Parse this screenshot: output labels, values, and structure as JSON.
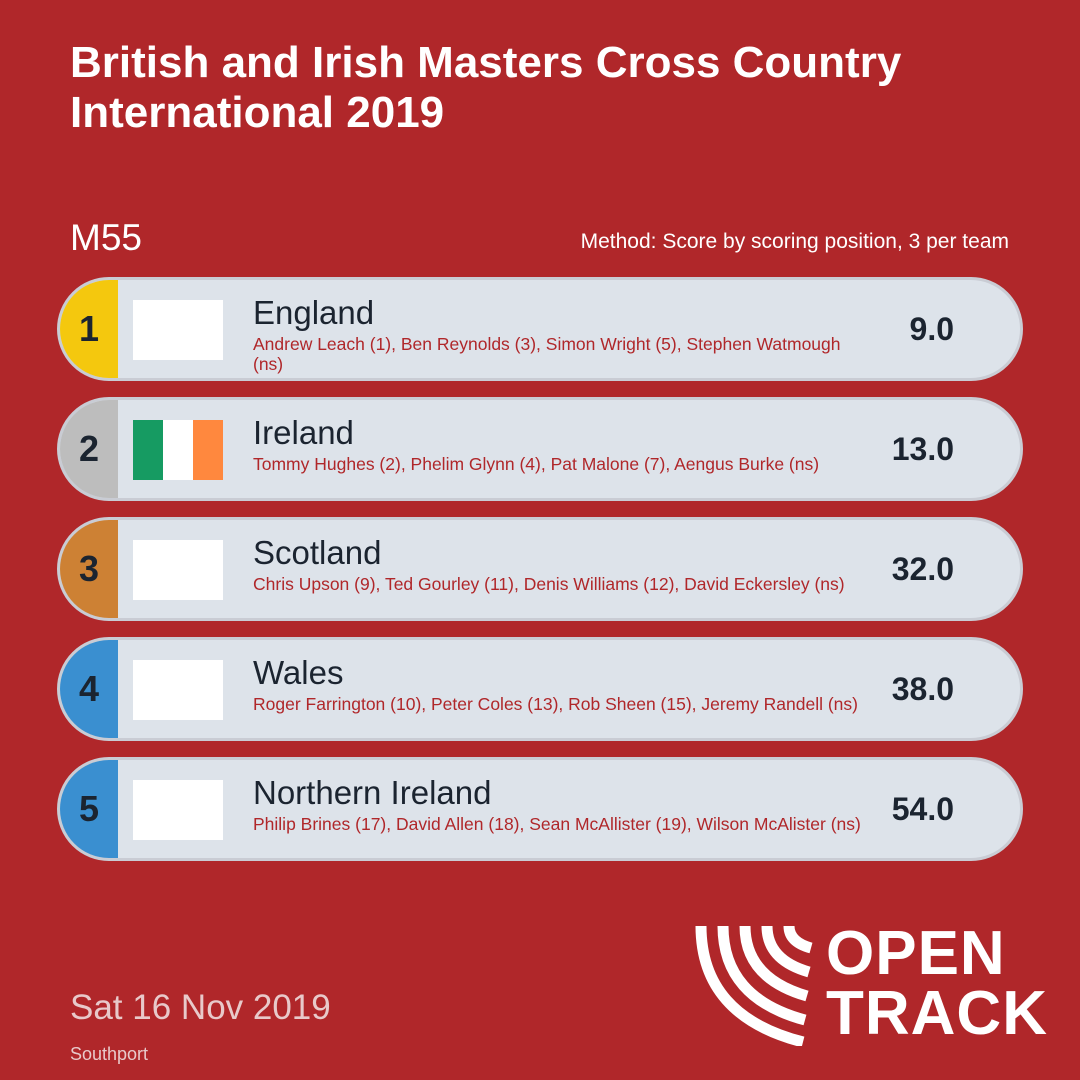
{
  "header": {
    "title": "British and Irish Masters Cross Country International 2019",
    "category": "M55",
    "method": "Method: Score by scoring position, 3 per team"
  },
  "results": [
    {
      "position": "1",
      "position_color": "#f4c80e",
      "flag": [
        "#ffffff"
      ],
      "team": "England",
      "athletes": "Andrew Leach (1), Ben Reynolds (3), Simon Wright (5), Stephen Watmough (ns)",
      "score": "9.0"
    },
    {
      "position": "2",
      "position_color": "#bdbdbd",
      "flag": [
        "#169b62",
        "#ffffff",
        "#ff883e"
      ],
      "team": "Ireland",
      "athletes": "Tommy Hughes (2), Phelim Glynn (4), Pat Malone (7), Aengus Burke (ns)",
      "score": "13.0"
    },
    {
      "position": "3",
      "position_color": "#cd8134",
      "flag": [
        "#ffffff"
      ],
      "team": "Scotland",
      "athletes": "Chris Upson (9), Ted Gourley (11), Denis Williams (12), David Eckersley (ns)",
      "score": "32.0"
    },
    {
      "position": "4",
      "position_color": "#3a8fd0",
      "flag": [
        "#ffffff"
      ],
      "team": "Wales",
      "athletes": "Roger Farrington (10), Peter Coles (13), Rob Sheen (15), Jeremy Randell (ns)",
      "score": "38.0"
    },
    {
      "position": "5",
      "position_color": "#3a8fd0",
      "flag": [
        "#ffffff"
      ],
      "team": "Northern Ireland",
      "athletes": "Philip Brines (17), David Allen (18), Sean McAllister (19), Wilson McAlister (ns)",
      "score": "54.0"
    }
  ],
  "footer": {
    "date": "Sat 16 Nov 2019",
    "venue": "Southport"
  },
  "logo": {
    "line1": "OPEN",
    "line2": "TRACK",
    "icon": "opentrack-track-lanes-icon"
  }
}
